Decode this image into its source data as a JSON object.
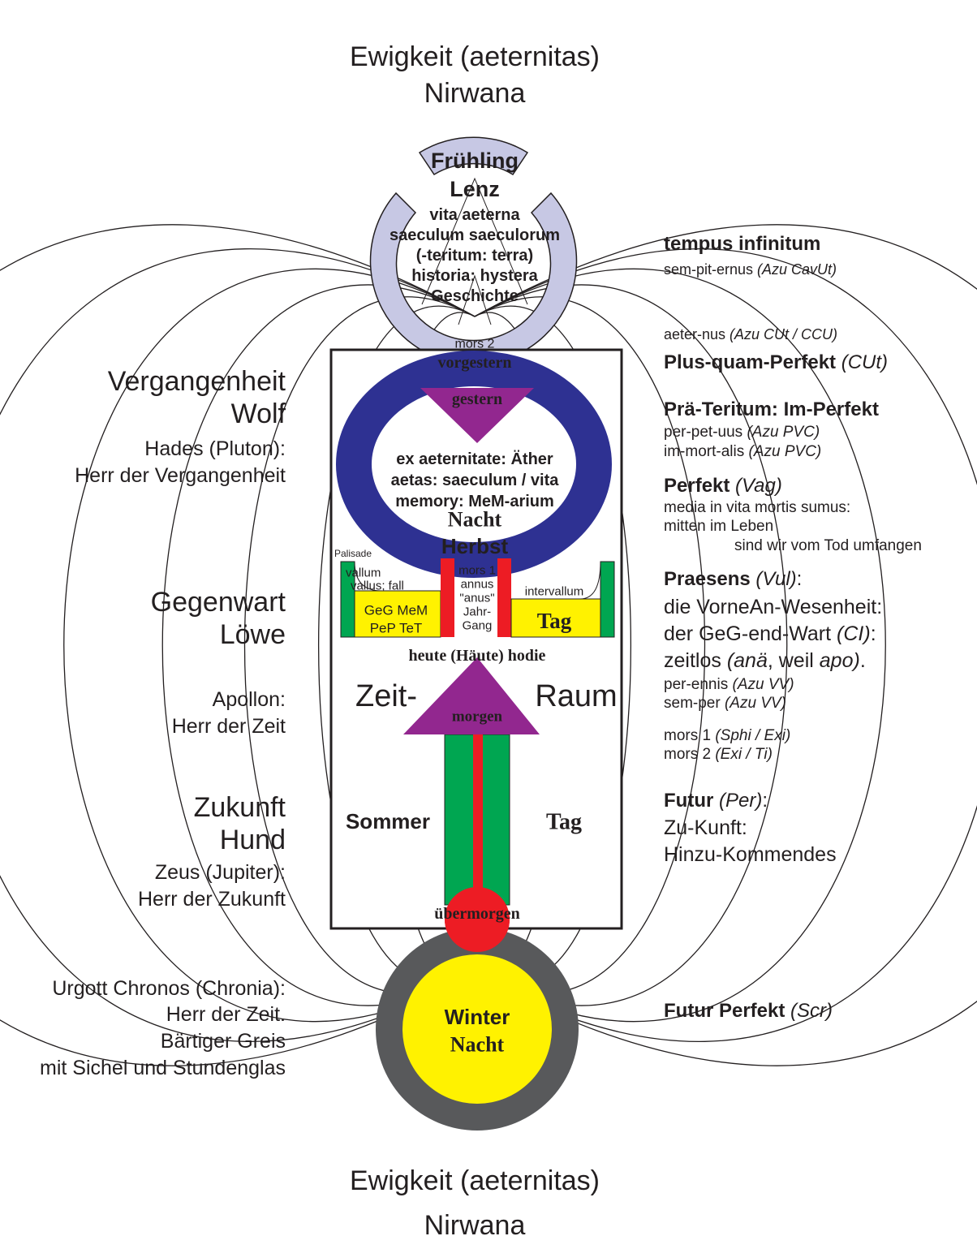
{
  "top": [
    "Ewigkeit (aeternitas)",
    "Nirwana"
  ],
  "bottom": [
    "Ewigkeit (aeternitas)",
    "Nirwana"
  ],
  "crown": {
    "spring": "Frühling",
    "lenz": "Lenz",
    "lines": [
      "vita aeterna",
      "saeculum saeculorum",
      "(-teritum: terra)",
      "historia: hystera",
      "Geschichte"
    ],
    "mors": "mors 2"
  },
  "box": {
    "vorgestern": "vorgestern",
    "gestern": "gestern",
    "lines": [
      "ex aeternitate: Äther",
      "aetas: saeculum / vita",
      "memory: MeM-arium"
    ],
    "night": "Nacht",
    "autumn": "Herbst",
    "palisade": "Palisade",
    "vallum": "vallum",
    "vallus": "vallus; fall",
    "geg": "GeG  MeM",
    "pep": "PeP  TeT",
    "mors": [
      "mors 1",
      "annus",
      "\"anus\"",
      "Jahr-",
      "Gang"
    ],
    "intervallum": "intervallum",
    "day": "Tag",
    "today": "heute (Häute) hodie",
    "time": "Zeit-",
    "space": "Raum",
    "tomorrow": "morgen",
    "summer": "Sommer",
    "day2": "Tag",
    "dayafter": "übermorgen"
  },
  "winter": {
    "season": "Winter",
    "night": "Nacht"
  },
  "left": [
    {
      "text": "Vergangenheit",
      "color": "#2e3192"
    },
    {
      "text": "Wolf",
      "color": "#2e3192"
    },
    {
      "text": "Hades (Pluton):"
    },
    {
      "text": "Herr der Vergangenheit"
    },
    {
      "text": "Gegenwart",
      "color": "#ed1c24"
    },
    {
      "text": "Löwe",
      "color": "#ed1c24"
    },
    {
      "text": "Apollon:"
    },
    {
      "text": "Herr der Zeit"
    },
    {
      "text": "Zukunft",
      "color": "#00a651"
    },
    {
      "text": "Hund",
      "color": "#00a651"
    },
    {
      "text": "Zeus (Jupiter):"
    },
    {
      "text": "Herr der Zukunft"
    },
    {
      "text": "Urgott Chronos (Chronia):"
    },
    {
      "text": "Herr der Zeit."
    },
    {
      "text": "Bärtiger Greis"
    },
    {
      "text": "mit Sichel und Stundenglas"
    }
  ],
  "right": [
    {
      "parts": [
        {
          "text": "tempus infinitum",
          "bold": true
        }
      ]
    },
    {
      "parts": [
        {
          "text": "sem-pit-ernus "
        },
        {
          "text": "(Azu CavUt)",
          "italic": true
        }
      ]
    },
    {
      "parts": [
        {
          "text": "aeter-nus "
        },
        {
          "text": "(Azu CUt / CCU)",
          "italic": true
        }
      ]
    },
    {
      "parts": [
        {
          "text": "Plus-quam-Perfekt ",
          "bold": true
        },
        {
          "text": "(CUt)",
          "italic": true
        }
      ]
    },
    {
      "parts": [
        {
          "text": "Prä-Teritum: Im-Perfekt",
          "bold": true
        }
      ]
    },
    {
      "parts": [
        {
          "text": "per-pet-uus "
        },
        {
          "text": "(Azu PVC)",
          "italic": true
        }
      ]
    },
    {
      "parts": [
        {
          "text": "im-mort-alis "
        },
        {
          "text": "(Azu PVC)",
          "italic": true
        }
      ]
    },
    {
      "parts": [
        {
          "text": "Perfekt ",
          "bold": true
        },
        {
          "text": "(Vag)",
          "italic": true
        }
      ]
    },
    {
      "parts": [
        {
          "text": "media in vita mortis sumus:"
        }
      ]
    },
    {
      "parts": [
        {
          "text": "mitten im Leben"
        }
      ]
    },
    {
      "parts": [
        {
          "text": "sind wir vom Tod umfangen"
        }
      ]
    },
    {
      "parts": [
        {
          "text": "Praesens ",
          "bold": true
        },
        {
          "text": "(Vul)",
          "italic": true
        },
        {
          "text": ":"
        }
      ]
    },
    {
      "parts": [
        {
          "text": "die VorneAn-Wesenheit:"
        }
      ]
    },
    {
      "parts": [
        {
          "text": "der GeG-end-Wart "
        },
        {
          "text": "(CI)",
          "italic": true
        },
        {
          "text": ":"
        }
      ]
    },
    {
      "parts": [
        {
          "text": "zeitlos "
        },
        {
          "text": "(anä",
          "italic": true
        },
        {
          "text": ", weil "
        },
        {
          "text": "apo)",
          "italic": true
        },
        {
          "text": "."
        }
      ]
    },
    {
      "parts": [
        {
          "text": "per-ennis "
        },
        {
          "text": "(Azu VV)",
          "italic": true
        }
      ]
    },
    {
      "parts": [
        {
          "text": "sem-per "
        },
        {
          "text": "(Azu VV)",
          "italic": true
        }
      ]
    },
    {
      "parts": [
        {
          "text": "mors 1 "
        },
        {
          "text": "(Sphi / Exi)",
          "italic": true
        }
      ]
    },
    {
      "parts": [
        {
          "text": "mors 2 "
        },
        {
          "text": "(Exi / Ti)",
          "italic": true
        }
      ]
    },
    {
      "parts": [
        {
          "text": "Futur ",
          "bold": true
        },
        {
          "text": "(Per)",
          "italic": true
        },
        {
          "text": ":"
        }
      ]
    },
    {
      "parts": [
        {
          "text": "Zu-Kunft:"
        }
      ]
    },
    {
      "parts": [
        {
          "text": "Hinzu-Kommendes"
        }
      ]
    },
    {
      "parts": [
        {
          "text": "Futur Perfekt ",
          "bold": true
        },
        {
          "text": "(Scr)",
          "italic": true
        }
      ]
    }
  ]
}
